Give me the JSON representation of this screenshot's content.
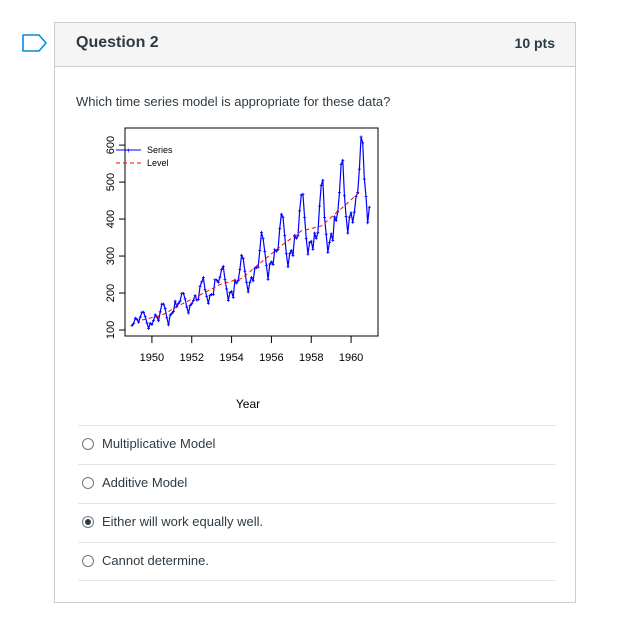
{
  "question": {
    "title": "Question 2",
    "points": "10 pts",
    "text": "Which time series model is appropriate for these data?"
  },
  "chart_data": {
    "type": "line",
    "title": "",
    "xlabel": "Year",
    "ylabel": "",
    "xlim": [
      1949,
      1961
    ],
    "ylim": [
      100,
      630
    ],
    "x_ticks": [
      "1950",
      "1952",
      "1954",
      "1956",
      "1958",
      "1960"
    ],
    "y_ticks": [
      "100",
      "200",
      "300",
      "400",
      "500",
      "600"
    ],
    "legend_position": "top-left",
    "series": [
      {
        "name": "Series",
        "color": "#0000ff",
        "start_year": 1949,
        "frequency": 12,
        "values": [
          112,
          118,
          132,
          129,
          121,
          135,
          148,
          148,
          136,
          119,
          104,
          118,
          115,
          126,
          141,
          135,
          125,
          149,
          170,
          170,
          158,
          133,
          114,
          140,
          145,
          150,
          178,
          163,
          172,
          178,
          199,
          199,
          184,
          162,
          146,
          166,
          171,
          180,
          193,
          181,
          183,
          218,
          230,
          242,
          209,
          191,
          172,
          194,
          196,
          196,
          236,
          235,
          229,
          243,
          264,
          272,
          237,
          211,
          180,
          201,
          204,
          188,
          235,
          227,
          234,
          264,
          302,
          293,
          259,
          229,
          203,
          229,
          242,
          233,
          267,
          269,
          270,
          315,
          364,
          347,
          312,
          274,
          237,
          278,
          284,
          277,
          317,
          313,
          318,
          374,
          413,
          405,
          355,
          306,
          271,
          306,
          315,
          301,
          356,
          348,
          355,
          422,
          465,
          467,
          404,
          347,
          305,
          336,
          340,
          318,
          362,
          348,
          363,
          435,
          491,
          505,
          404,
          359,
          310,
          337,
          360,
          342,
          406,
          396,
          420,
          472,
          548,
          559,
          463,
          407,
          362,
          405,
          417,
          391,
          419,
          461,
          472,
          535,
          622,
          606,
          508,
          461,
          390,
          432
        ]
      },
      {
        "name": "Level",
        "color": "#ff0000",
        "style": "dashed",
        "x": [
          1949.5,
          1950.5,
          1951.5,
          1952.5,
          1953.5,
          1954.5,
          1955.5,
          1956.5,
          1957.5,
          1958.5,
          1959.5,
          1960.5
        ],
        "values": [
          127,
          140,
          170,
          197,
          225,
          239,
          284,
          328,
          368,
          381,
          428,
          476
        ]
      }
    ]
  },
  "answers": [
    {
      "label": "Multiplicative Model",
      "selected": false
    },
    {
      "label": "Additive Model",
      "selected": false
    },
    {
      "label": "Either will work equally well.",
      "selected": true
    },
    {
      "label": "Cannot determine.",
      "selected": false
    }
  ]
}
